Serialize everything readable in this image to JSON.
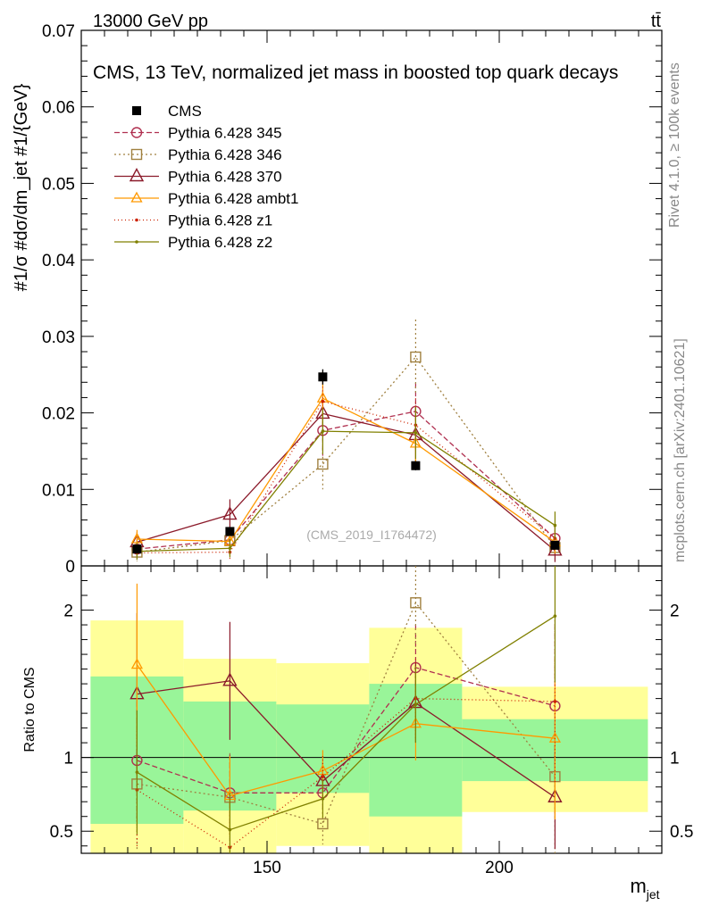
{
  "header": {
    "beam": "13000 GeV pp",
    "process": "tt̄",
    "title": "CMS, 13 TeV, normalized jet mass in boosted top quark decays",
    "rivet": "Rivet 4.1.0, ≥ 100k events",
    "source": "mcplots.cern.ch [arXiv:2401.10621]",
    "analysis": "(CMS_2019_I1764472)"
  },
  "colors": {
    "band_inner": "#99f599",
    "band_outer": "#ffff99",
    "cms": "#000000",
    "p345": "#b03050",
    "p346": "#a08040",
    "p370": "#8b1a2a",
    "ambt1": "#ff9900",
    "z1": "#cc2200",
    "z2": "#808000"
  },
  "chart_data": [
    {
      "type": "line",
      "panel": "main",
      "ylabel": "#1/σ #dσ/dm_jet #1/{GeV}",
      "xlabel": "m_jet",
      "xlim": [
        110,
        235
      ],
      "ylim": [
        0,
        0.07
      ],
      "yticks": [
        "0",
        "0.01",
        "0.02",
        "0.03",
        "0.04",
        "0.05",
        "0.06",
        "0.07"
      ],
      "x": [
        122,
        142,
        162,
        182,
        212
      ],
      "data": {
        "name": "CMS",
        "x": [
          122,
          142,
          162,
          182,
          212
        ],
        "y": [
          0.0022,
          0.0045,
          0.0247,
          0.0131,
          0.0027
        ],
        "err": [
          0.0003,
          0.0004,
          0.001,
          0.0006,
          0.0003
        ]
      },
      "series": [
        {
          "name": "Pythia 6.428 345",
          "key": "p345",
          "marker": "circle",
          "dash": "6,3",
          "values": [
            0.0022,
            0.0034,
            0.0177,
            0.0202,
            0.0036
          ],
          "err": [
            0.0011,
            0.0012,
            0.0033,
            0.0037,
            0.0015
          ]
        },
        {
          "name": "Pythia 6.428 346",
          "key": "p346",
          "marker": "square",
          "dash": "2,3",
          "values": [
            0.0018,
            0.0033,
            0.0133,
            0.0273,
            0.0024
          ],
          "err": [
            0.0012,
            0.0014,
            0.0033,
            0.0049,
            0.0015
          ]
        },
        {
          "name": "Pythia 6.428 370",
          "key": "p370",
          "marker": "triangle",
          "dash": "",
          "values": [
            0.0031,
            0.0067,
            0.0199,
            0.0171,
            0.002
          ],
          "err": [
            0.0013,
            0.002,
            0.003,
            0.0035,
            0.0015
          ]
        },
        {
          "name": "Pythia 6.428 ambt1",
          "key": "ambt1",
          "marker": "triangle-small",
          "dash": "",
          "values": [
            0.0035,
            0.0032,
            0.0219,
            0.016,
            0.0031
          ],
          "err": [
            0.0012,
            0.0012,
            0.0035,
            0.0033,
            0.0015
          ]
        },
        {
          "name": "Pythia 6.428 z1",
          "key": "z1",
          "marker": "dot",
          "dash": "1,3",
          "values": [
            0.0017,
            0.0018,
            0.0215,
            0.0184,
            0.0036
          ],
          "err": [
            0.0011,
            0.0011,
            0.0033,
            0.0035,
            0.0015
          ]
        },
        {
          "name": "Pythia 6.428 z2",
          "key": "z2",
          "marker": "dot",
          "dash": "",
          "values": [
            0.0019,
            0.0023,
            0.0176,
            0.0174,
            0.0053
          ],
          "err": [
            0.0011,
            0.0012,
            0.003,
            0.0034,
            0.0018
          ]
        }
      ]
    },
    {
      "type": "line",
      "panel": "ratio",
      "ylabel": "Ratio to CMS",
      "xlabel": "m_jet",
      "xlim": [
        110,
        235
      ],
      "ylim": [
        0.35,
        2.3
      ],
      "yticks": [
        "0.5",
        "1",
        "2"
      ],
      "xticks": [
        "150",
        "200"
      ],
      "bands": {
        "edges": [
          112,
          132,
          152,
          172,
          192,
          232
        ],
        "inner_lo": [
          0.55,
          0.64,
          0.76,
          0.6,
          0.84
        ],
        "inner_hi": [
          1.55,
          1.38,
          1.36,
          1.5,
          1.26
        ],
        "outer_lo": [
          0.35,
          0.35,
          0.4,
          0.35,
          0.63
        ],
        "outer_hi": [
          1.93,
          1.67,
          1.64,
          1.88,
          1.48
        ]
      },
      "series": [
        {
          "name": "Pythia 6.428 345",
          "key": "p345",
          "marker": "circle",
          "dash": "6,3",
          "values": [
            0.98,
            0.76,
            0.76,
            1.61,
            1.35
          ],
          "err": [
            0.4,
            0.26,
            0.14,
            0.29,
            0.55
          ]
        },
        {
          "name": "Pythia 6.428 346",
          "key": "p346",
          "marker": "square",
          "dash": "2,3",
          "values": [
            0.82,
            0.73,
            0.55,
            2.05,
            0.87
          ],
          "err": [
            0.45,
            0.3,
            0.14,
            0.3,
            0.55
          ]
        },
        {
          "name": "Pythia 6.428 370",
          "key": "p370",
          "marker": "triangle",
          "dash": "",
          "values": [
            1.43,
            1.52,
            0.84,
            1.37,
            0.73
          ],
          "err": [
            0.55,
            0.4,
            0.13,
            0.27,
            0.35
          ]
        },
        {
          "name": "Pythia 6.428 ambt1",
          "key": "ambt1",
          "marker": "triangle-small",
          "dash": "",
          "values": [
            1.63,
            0.74,
            0.91,
            1.23,
            1.13
          ],
          "err": [
            0.55,
            0.27,
            0.14,
            0.25,
            0.55
          ]
        },
        {
          "name": "Pythia 6.428 z1",
          "key": "z1",
          "marker": "dot",
          "dash": "1,3",
          "values": [
            0.78,
            0.39,
            0.87,
            1.4,
            1.38
          ],
          "err": [
            0.4,
            0.22,
            0.14,
            0.27,
            0.55
          ]
        },
        {
          "name": "Pythia 6.428 z2",
          "key": "z2",
          "marker": "dot",
          "dash": "",
          "values": [
            0.9,
            0.51,
            0.72,
            1.36,
            1.96
          ],
          "err": [
            0.42,
            0.25,
            0.13,
            0.26,
            0.45
          ]
        }
      ]
    }
  ]
}
